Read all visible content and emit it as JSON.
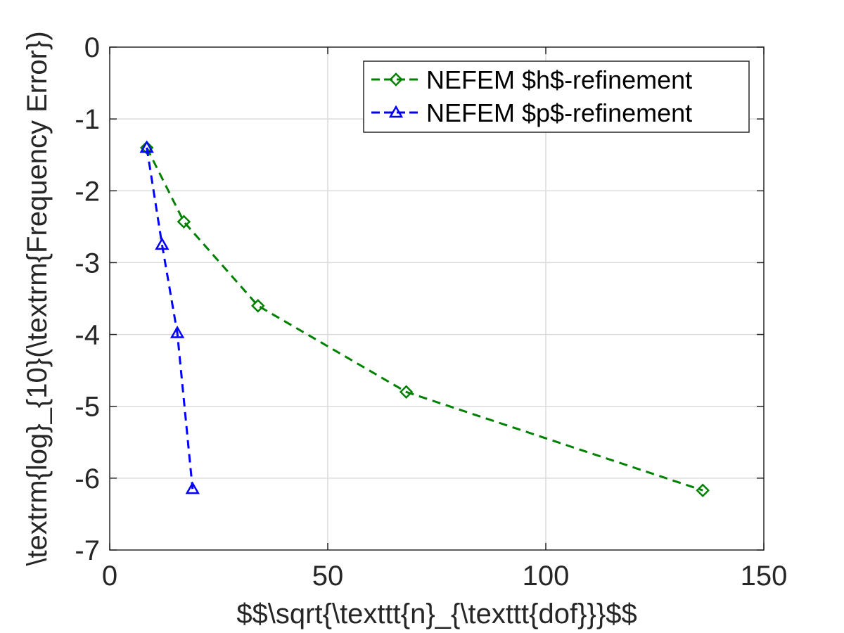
{
  "chart_data": {
    "type": "line",
    "xlabel": "$$\\sqrt{\\texttt{n}_{\\texttt{dof}}}$$",
    "ylabel": "\\textrm{log}_{10}(\\textrm{Frequency Error})",
    "xlim": [
      0,
      150
    ],
    "ylim": [
      -7,
      0
    ],
    "xticks": [
      0,
      50,
      100,
      150
    ],
    "yticks": [
      0,
      -1,
      -2,
      -3,
      -4,
      -5,
      -6,
      -7
    ],
    "xtick_labels": [
      "0",
      "50",
      "100",
      "150"
    ],
    "ytick_labels": [
      "0",
      "-1",
      "-2",
      "-3",
      "-4",
      "-5",
      "-6",
      "-7"
    ],
    "grid": true,
    "legend_position": "top-right",
    "series": [
      {
        "name": "NEFEM $h$-refinement",
        "color": "#008000",
        "marker": "diamond",
        "line_style": "dashed",
        "x": [
          8.5,
          17,
          34,
          68,
          136
        ],
        "y": [
          -1.4,
          -2.43,
          -3.6,
          -4.8,
          -6.17
        ]
      },
      {
        "name": "NEFEM $p$-refinement",
        "color": "#0000ff",
        "marker": "triangle",
        "line_style": "dashed",
        "x": [
          8.5,
          12,
          15.5,
          19
        ],
        "y": [
          -1.4,
          -2.75,
          -3.98,
          -6.15
        ]
      }
    ]
  }
}
